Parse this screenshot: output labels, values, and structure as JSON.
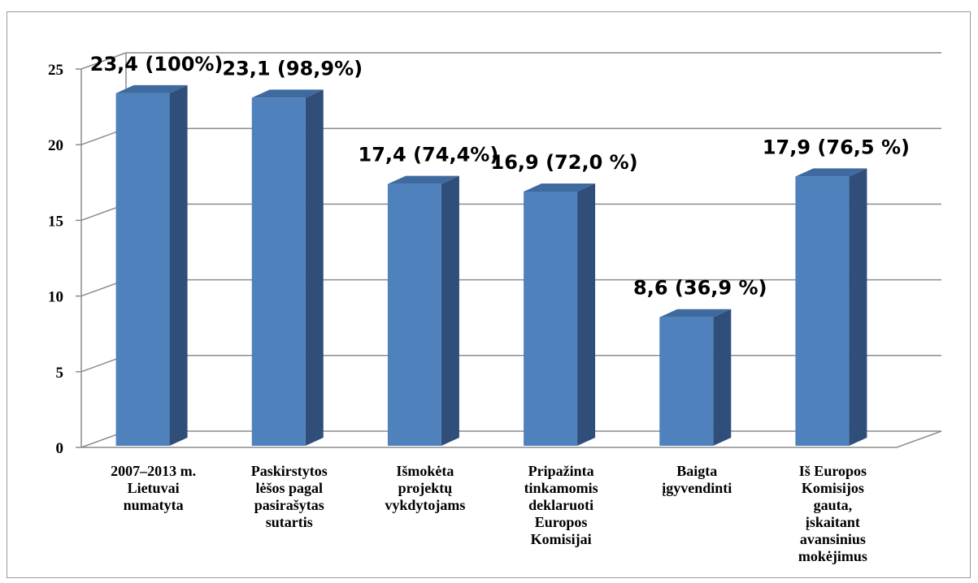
{
  "chart_data": {
    "type": "bar",
    "title": "",
    "xlabel": "",
    "ylabel": "",
    "ylim": [
      0,
      25
    ],
    "yticks": [
      "0",
      "5",
      "10",
      "15",
      "20",
      "25"
    ],
    "grid": true,
    "bar_color": "#4f81bd",
    "bar_side_color": "#2f4f7a",
    "bar_top_color": "#3e6aa0",
    "categories": [
      {
        "lines": [
          "2007–2013 m.",
          "Lietuvai",
          "numatyta"
        ]
      },
      {
        "lines": [
          "Paskirstytos",
          "lėšos pagal",
          "pasirašytas",
          "sutartis"
        ]
      },
      {
        "lines": [
          "Išmokėta",
          "projektų",
          "vykdytojams"
        ]
      },
      {
        "lines": [
          "Pripažinta",
          "tinkamomis",
          "deklaruoti",
          "Europos",
          "Komisijai"
        ]
      },
      {
        "lines": [
          "Baigta",
          "įgyvendinti"
        ]
      },
      {
        "lines": [
          "Iš Europos",
          "Komisijos",
          "gauta,",
          "įskaitant",
          "avansinius",
          "mokėjimus"
        ]
      }
    ],
    "values": [
      23.4,
      23.1,
      17.4,
      16.9,
      8.6,
      17.9
    ],
    "data_labels": [
      "23,4 (100%)",
      "23,1 (98,9%)",
      "17,4 (74,4%)",
      "16,9 (72,0 %)",
      "8,6 (36,9 %)",
      "17,9 (76,5 %)"
    ]
  }
}
